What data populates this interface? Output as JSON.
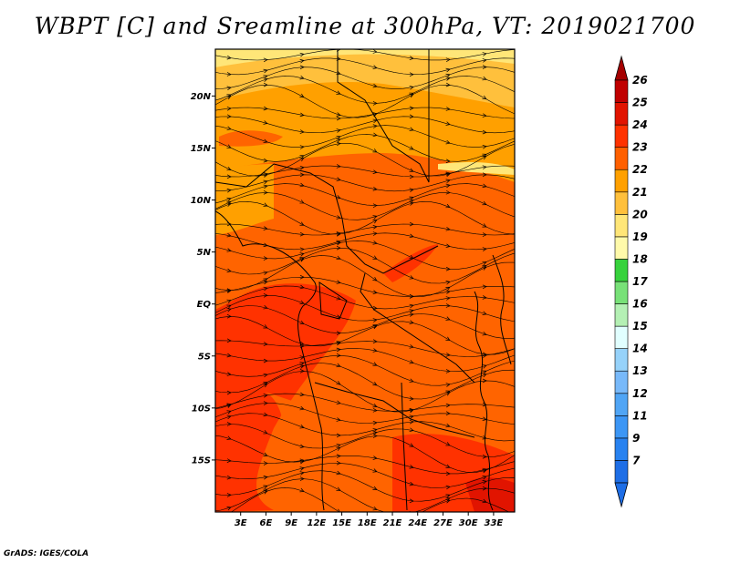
{
  "title": "WBPT [C] and Sreamline at 300hPa, VT: 2019021700",
  "credit": "GrADS: IGES/COLA",
  "map": {
    "lon_range": [
      0,
      35.5
    ],
    "lat_range": [
      -20,
      24.5
    ],
    "lat_ticks": [
      {
        "value": 20,
        "label": "20N"
      },
      {
        "value": 15,
        "label": "15N"
      },
      {
        "value": 10,
        "label": "10N"
      },
      {
        "value": 5,
        "label": "5N"
      },
      {
        "value": 0,
        "label": "EQ"
      },
      {
        "value": -5,
        "label": "5S"
      },
      {
        "value": -10,
        "label": "10S"
      },
      {
        "value": -15,
        "label": "15S"
      }
    ],
    "lon_ticks": [
      {
        "value": 3,
        "label": "3E"
      },
      {
        "value": 6,
        "label": "6E"
      },
      {
        "value": 9,
        "label": "9E"
      },
      {
        "value": 12,
        "label": "12E"
      },
      {
        "value": 15,
        "label": "15E"
      },
      {
        "value": 18,
        "label": "18E"
      },
      {
        "value": 21,
        "label": "21E"
      },
      {
        "value": 24,
        "label": "24E"
      },
      {
        "value": 27,
        "label": "27E"
      },
      {
        "value": 30,
        "label": "30E"
      },
      {
        "value": 33,
        "label": "33E"
      }
    ]
  },
  "colorbar": {
    "levels": [
      {
        "label": "7",
        "color": "#1e6ee6"
      },
      {
        "label": "9",
        "color": "#2882f0"
      },
      {
        "label": "11",
        "color": "#3c96f5"
      },
      {
        "label": "12",
        "color": "#50a5f5"
      },
      {
        "label": "13",
        "color": "#78b9fa"
      },
      {
        "label": "14",
        "color": "#96d2fa"
      },
      {
        "label": "15",
        "color": "#e1ffff"
      },
      {
        "label": "16",
        "color": "#b4f0b4"
      },
      {
        "label": "17",
        "color": "#78e178"
      },
      {
        "label": "18",
        "color": "#37d23c"
      },
      {
        "label": "19",
        "color": "#fffaaa"
      },
      {
        "label": "20",
        "color": "#ffe678"
      },
      {
        "label": "21",
        "color": "#ffc03c"
      },
      {
        "label": "22",
        "color": "#ffa000"
      },
      {
        "label": "23",
        "color": "#ff6000"
      },
      {
        "label": "24",
        "color": "#ff3200"
      },
      {
        "label": "25",
        "color": "#e11400"
      },
      {
        "label": "26",
        "color": "#c00000"
      }
    ],
    "under_color": "#1e6ee6",
    "over_color": "#a50000"
  }
}
